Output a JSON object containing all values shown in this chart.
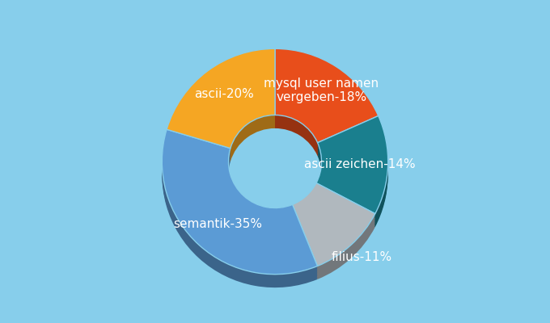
{
  "title": "",
  "labels": [
    "mysql user namen vergeben",
    "ascii zeichen",
    "filius",
    "semantik",
    "ascii"
  ],
  "values": [
    18,
    14,
    11,
    35,
    20
  ],
  "colors": [
    "#e84e1b",
    "#1a7f8e",
    "#b0b8be",
    "#5b9bd5",
    "#f5a623"
  ],
  "label_texts": [
    "mysql user namen vergeben-18%",
    "ascii zeichen-14%",
    "filius-11%",
    "semantik-35%",
    "ascii-20%"
  ],
  "background_color": "#87ceeb",
  "text_color": "#ffffff",
  "font_size": 11,
  "donut_width": 0.5,
  "start_angle": 90
}
